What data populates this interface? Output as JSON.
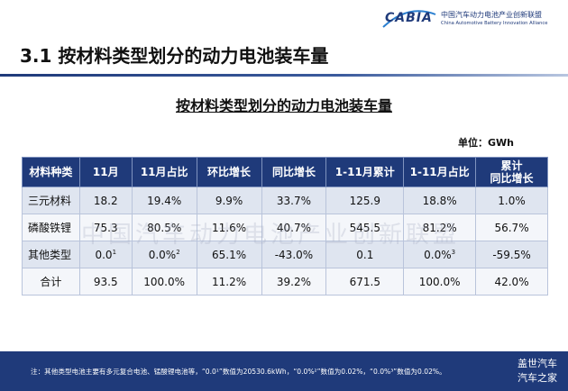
{
  "logo": {
    "mark": "CABIA",
    "name_cn": "中国汽车动力电池产业创新联盟",
    "name_en": "China Automotive Battery Innovation Alliance"
  },
  "section_title": "3.1  按材料类型划分的动力电池装车量",
  "table_title": "按材料类型划分的动力电池装车量",
  "unit": "单位：GWh",
  "table": {
    "headers": [
      "材料种类",
      "11月",
      "11月占比",
      "环比增长",
      "同比增长",
      "1-11月累计",
      "1-11月占比",
      "累计\n同比增长"
    ],
    "rows": [
      {
        "name": "三元材料",
        "m11": "18.2",
        "m11_share": "19.4%",
        "mom": "9.9%",
        "yoy": "33.7%",
        "cum": "125.9",
        "cum_share": "18.8%",
        "cum_yoy": "1.0%"
      },
      {
        "name": "磷酸铁锂",
        "m11": "75.3",
        "m11_share": "80.5%",
        "mom": "11.6%",
        "yoy": "40.7%",
        "cum": "545.5",
        "cum_share": "81.2%",
        "cum_yoy": "56.7%"
      },
      {
        "name": "其他类型",
        "m11": "0.0",
        "m11_sup": "1",
        "m11_share": "0.0%",
        "m11_share_sup": "2",
        "mom": "65.1%",
        "yoy": "-43.0%",
        "cum": "0.1",
        "cum_share": "0.0%",
        "cum_share_sup": "3",
        "cum_yoy": "-59.5%"
      },
      {
        "name": "合计",
        "m11": "93.5",
        "m11_share": "100.0%",
        "mom": "11.2%",
        "yoy": "39.2%",
        "cum": "671.5",
        "cum_share": "100.0%",
        "cum_yoy": "42.0%"
      }
    ]
  },
  "watermark": "中国汽车动力电池产业创新联盟",
  "footer": {
    "note": "注：其他类型电池主要有多元复合电池、锰酸锂电池等，“0.0¹”数值为20530.6kWh，“0.0%²”数值为0.02%，“0.0%³”数值为0.02%。",
    "brand_line1": "盖世汽车",
    "brand_line2": "汽车之家"
  },
  "colors": {
    "primary": "#1f3a7a",
    "row_odd": "#dfe5f0",
    "row_even": "#f4f6fa"
  }
}
